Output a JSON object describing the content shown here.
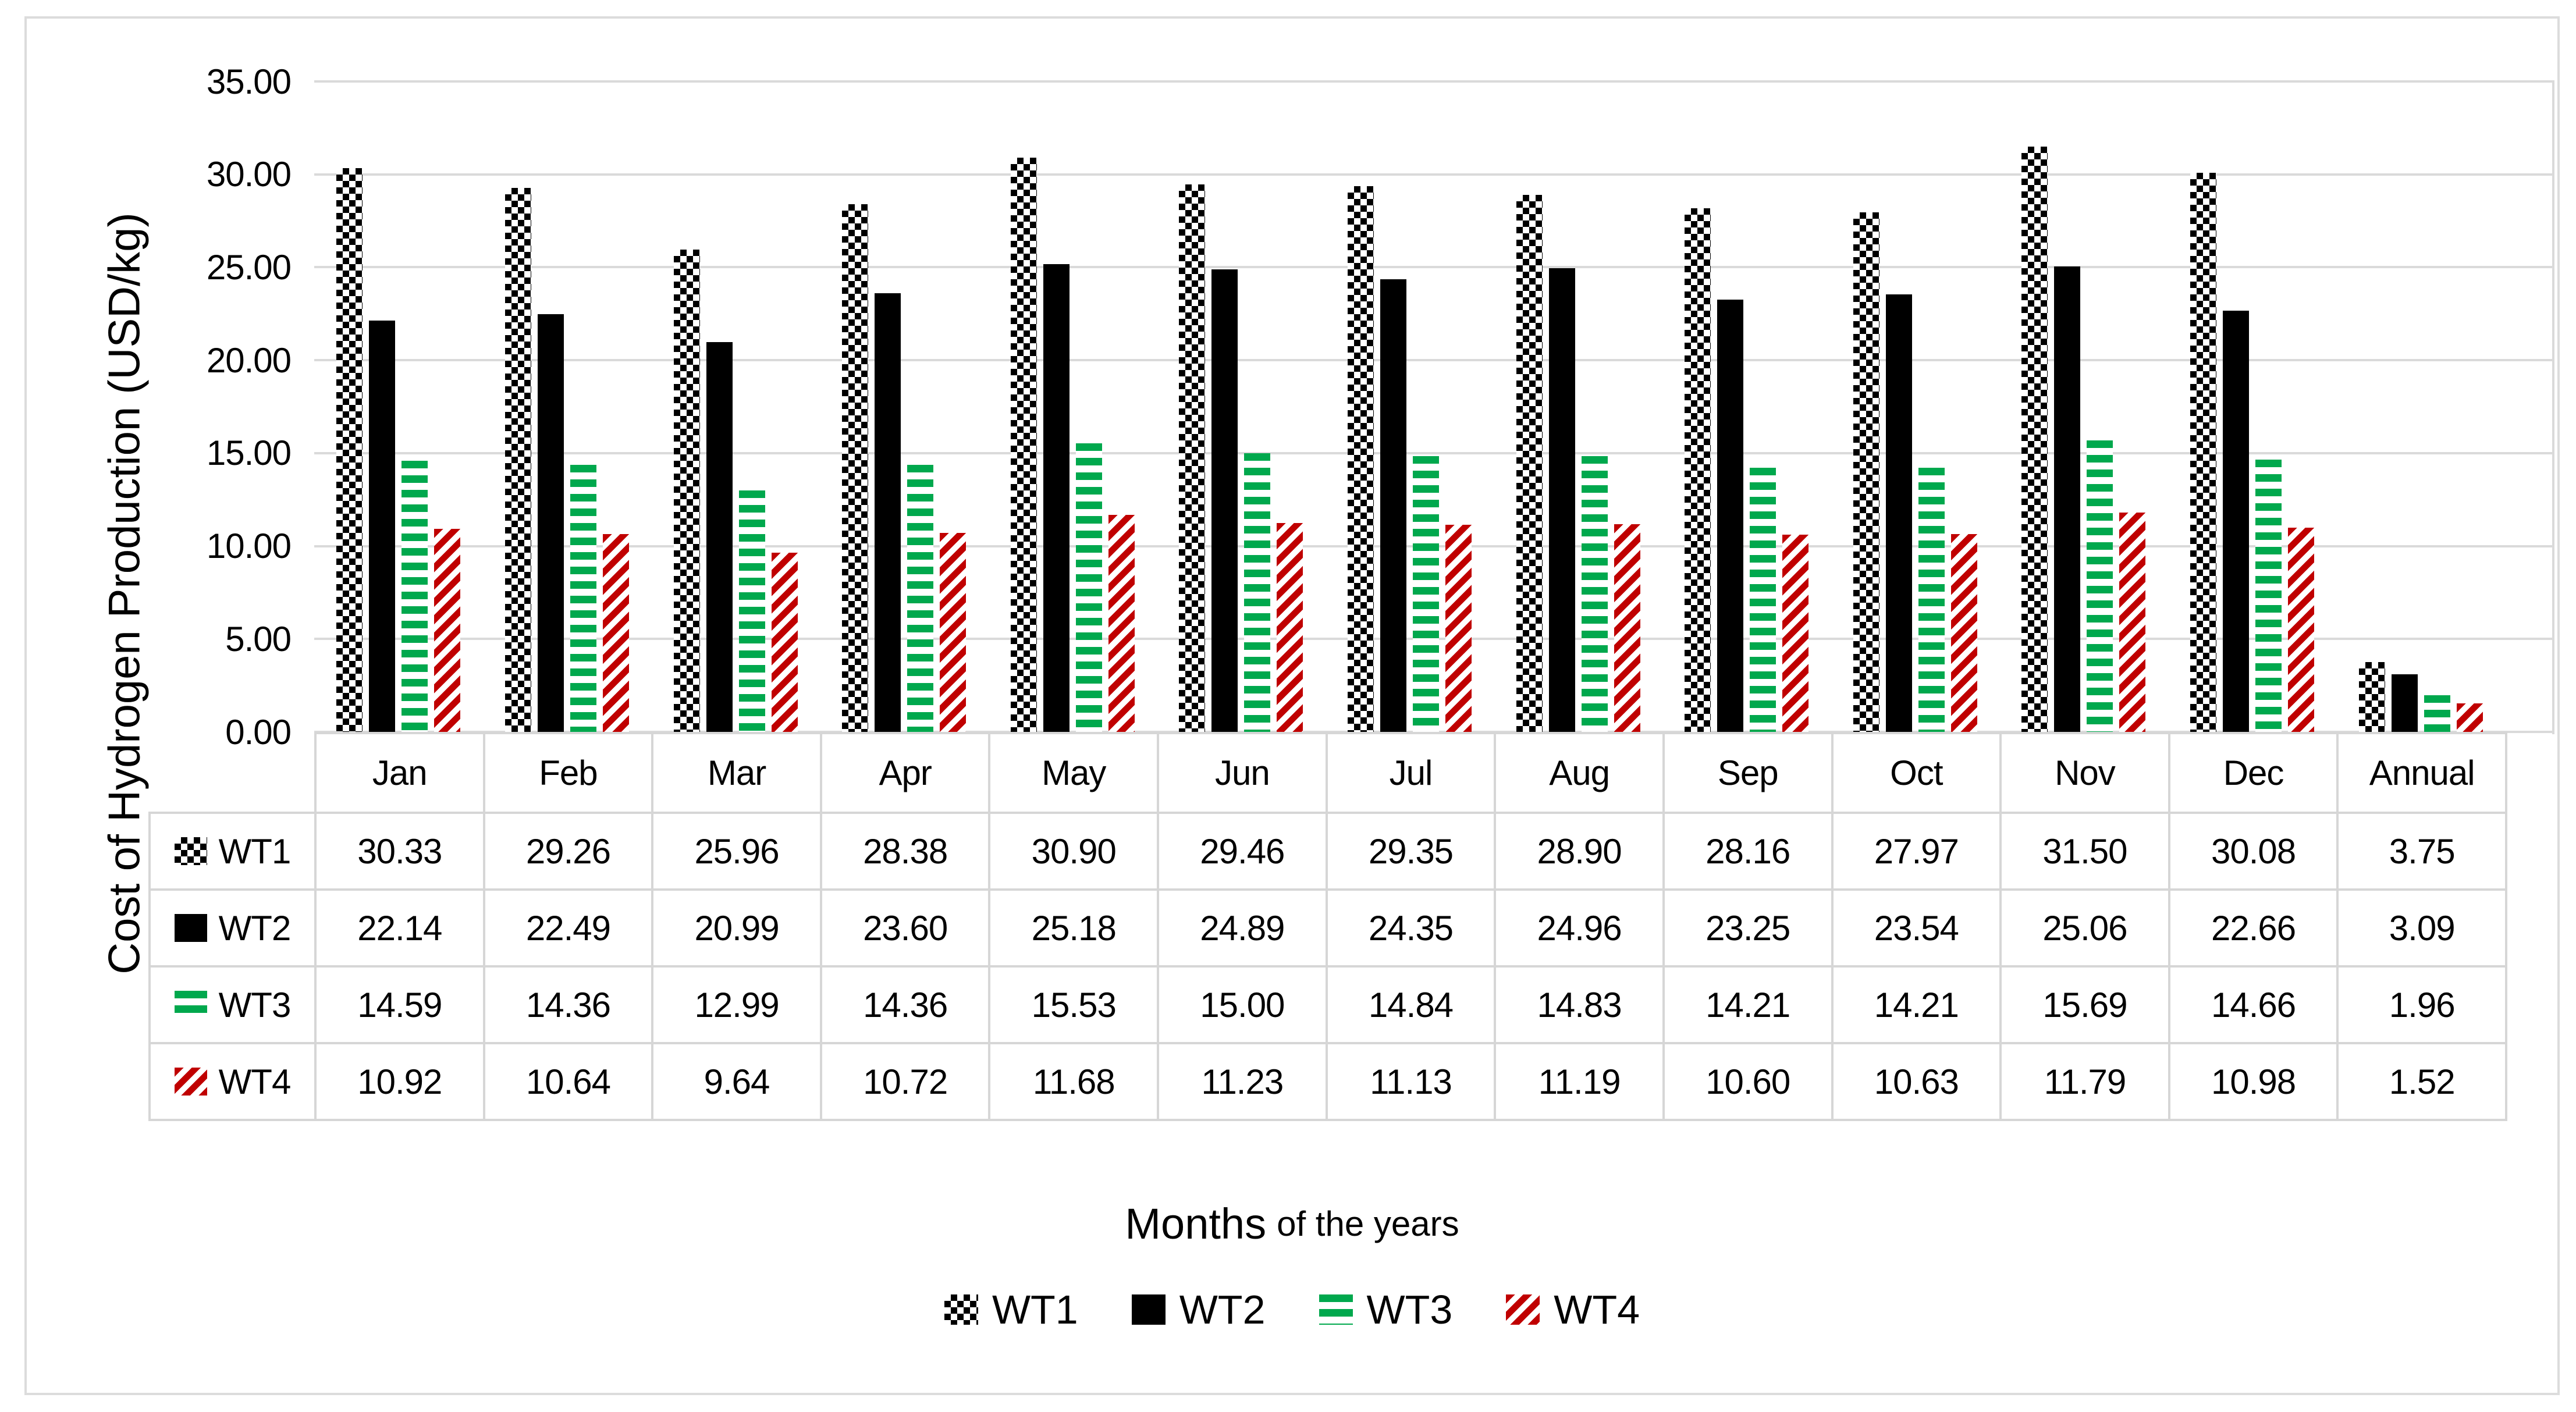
{
  "figure": {
    "background": "#FFFFFF",
    "frame_border": "#DCDCDC"
  },
  "colors": {
    "wt1_black": "#000000",
    "wt2_black": "#000000",
    "wt3_green": "#00A84D",
    "wt4_red": "#C00000",
    "gridline": "#DADADA",
    "table_border": "#D6D6D6",
    "text": "#000000"
  },
  "y_axis": {
    "title": "Cost of Hydrogen Production (USD/kg)",
    "min": 0,
    "max": 35,
    "step": 5,
    "decimals": 2,
    "tick_labels": [
      "0.00",
      "5.00",
      "10.00",
      "15.00",
      "20.00",
      "25.00",
      "30.00",
      "35.00"
    ]
  },
  "x_axis": {
    "title_main": "Months",
    "title_sub": "of the years"
  },
  "legend": {
    "position": "bottom",
    "items": [
      {
        "label": "WT1",
        "pattern": "checker"
      },
      {
        "label": "WT2",
        "pattern": "solid"
      },
      {
        "label": "WT3",
        "pattern": "green"
      },
      {
        "label": "WT4",
        "pattern": "red"
      }
    ]
  },
  "chart_data": {
    "type": "bar",
    "title": "",
    "xlabel": "Months of the years",
    "ylabel": "Cost of Hydrogen Production (USD/kg)",
    "ylim": [
      0,
      35
    ],
    "grid": true,
    "legend_position": "bottom",
    "value_decimals": 2,
    "categories": [
      "Jan",
      "Feb",
      "Mar",
      "Apr",
      "May",
      "Jun",
      "Jul",
      "Aug",
      "Sep",
      "Oct",
      "Nov",
      "Dec",
      "Annual"
    ],
    "series": [
      {
        "name": "WT1",
        "pattern": "checker",
        "values": [
          30.33,
          29.26,
          25.96,
          28.38,
          30.9,
          29.46,
          29.35,
          28.9,
          28.16,
          27.97,
          31.5,
          30.08,
          3.75
        ]
      },
      {
        "name": "WT2",
        "pattern": "solid",
        "values": [
          22.14,
          22.49,
          20.99,
          23.6,
          25.18,
          24.89,
          24.35,
          24.96,
          23.25,
          23.54,
          25.06,
          22.66,
          3.09
        ]
      },
      {
        "name": "WT3",
        "pattern": "green",
        "values": [
          14.59,
          14.36,
          12.99,
          14.36,
          15.53,
          15.0,
          14.84,
          14.83,
          14.21,
          14.21,
          15.69,
          14.66,
          1.96
        ]
      },
      {
        "name": "WT4",
        "pattern": "red",
        "values": [
          10.92,
          10.64,
          9.64,
          10.72,
          11.68,
          11.23,
          11.13,
          11.19,
          10.6,
          10.63,
          11.79,
          10.98,
          1.52
        ]
      }
    ]
  }
}
